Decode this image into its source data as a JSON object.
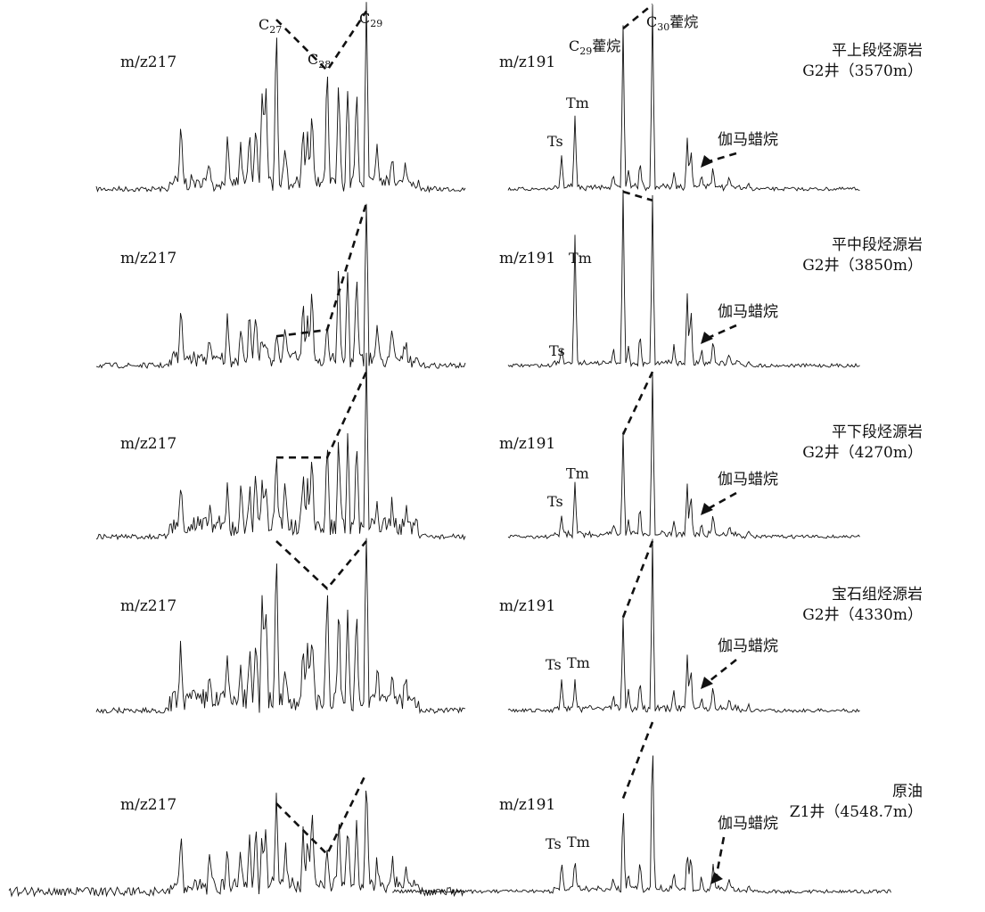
{
  "chart_data": {
    "type": "line",
    "description_labels": {
      "left_trace": "m/z217",
      "right_trace": "m/z191",
      "gammacerane": "伽马蜡烷",
      "ts": "Ts",
      "tm": "Tm",
      "c27": "C",
      "c27_sub": "27",
      "c28": "C",
      "c28_sub": "28",
      "c29": "C",
      "c29_sub": "29",
      "c29_hopane": "C",
      "c29_hopane_sub": "29",
      "c29_hopane_suffix": "藿烷",
      "c30_hopane": "C",
      "c30_hopane_sub": "30",
      "c30_hopane_suffix": "藿烷"
    },
    "rows": [
      {
        "sample": "平上段烃源岩",
        "well": "G2井（3570m）",
        "sterane_peaks": {
          "C27": 1.0,
          "C28": 0.7,
          "C29": 1.05
        },
        "hopane_peaks": {
          "Ts": 0.2,
          "Tm": 0.45,
          "C29": 1.0,
          "C30": 1.15,
          "gammacerane": 0.3
        },
        "sterane_trend": "V"
      },
      {
        "sample": "平中段烃源岩",
        "well": "G2井（3850m）",
        "sterane_peaks": {
          "C27": 0.18,
          "C28": 0.22,
          "C29": 1.0
        },
        "hopane_peaks": {
          "Ts": 0.08,
          "Tm": 0.75,
          "C29": 1.0,
          "C30": 0.95,
          "gammacerane": 0.4
        },
        "sterane_trend": "rising"
      },
      {
        "sample": "平下段烃源岩",
        "well": "G2井（4270m）",
        "sterane_peaks": {
          "C27": 0.48,
          "C28": 0.48,
          "C29": 1.0
        },
        "hopane_peaks": {
          "Ts": 0.12,
          "Tm": 0.3,
          "C29": 0.62,
          "C30": 1.0,
          "gammacerane": 0.3
        },
        "sterane_trend": "flat-then-rising"
      },
      {
        "sample": "宝石组烃源岩",
        "well": "G2井（4330m）",
        "sterane_peaks": {
          "C27": 1.0,
          "C28": 0.72,
          "C29": 1.0
        },
        "hopane_peaks": {
          "Ts": 0.18,
          "Tm": 0.18,
          "C29": 0.55,
          "C30": 1.0,
          "gammacerane": 0.3
        },
        "sterane_trend": "V"
      },
      {
        "sample": "原油",
        "well": "Z1井（4548.7m）",
        "sterane_peaks": {
          "C27": 0.52,
          "C28": 0.22,
          "C29": 0.7
        },
        "hopane_peaks": {
          "Ts": 0.18,
          "Tm": 0.2,
          "C29": 0.55,
          "C30": 1.0,
          "gammacerane": 0.25
        },
        "sterane_trend": "V"
      }
    ]
  }
}
